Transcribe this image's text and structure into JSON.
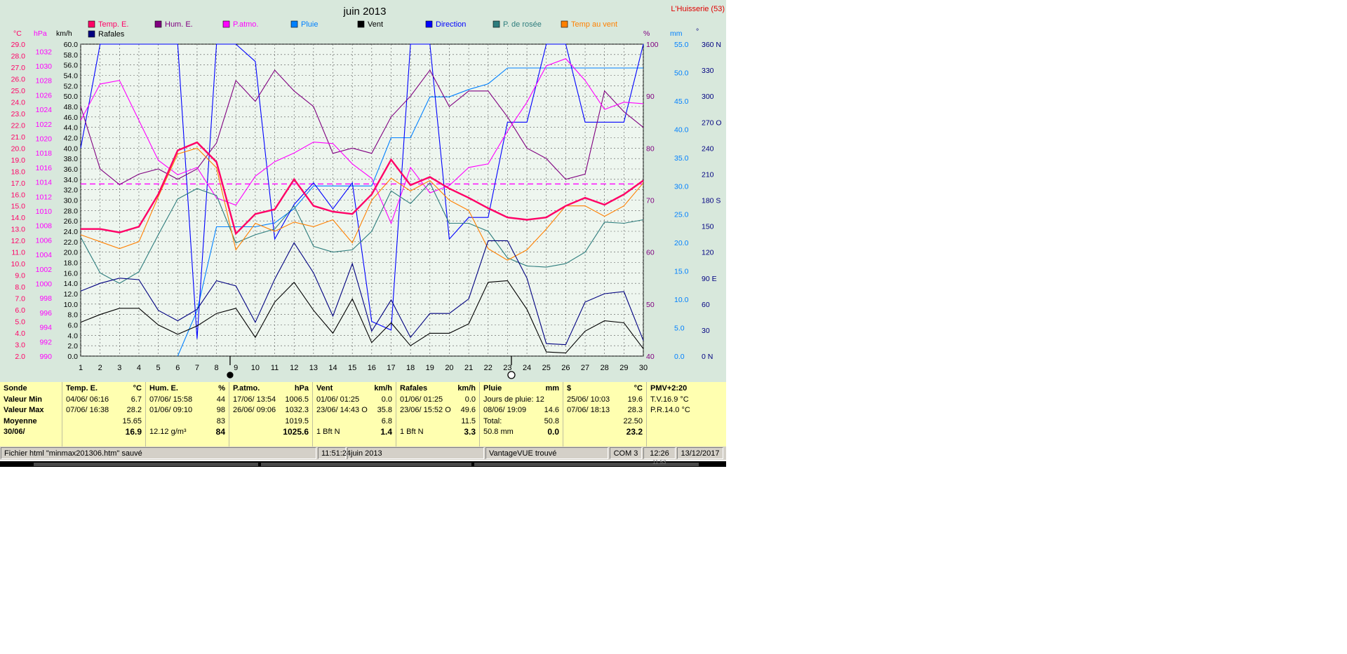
{
  "header": {
    "title": "juin 2013",
    "station": "L'Huisserie (53)"
  },
  "legend": [
    {
      "label": "Temp. E.",
      "color": "#ff0066"
    },
    {
      "label": "Hum. E.",
      "color": "#800080"
    },
    {
      "label": "P.atmo.",
      "color": "#ff00ff"
    },
    {
      "label": "Pluie",
      "color": "#0080ff"
    },
    {
      "label": "Vent",
      "color": "#000000"
    },
    {
      "label": "Direction",
      "color": "#0000ff"
    },
    {
      "label": "P. de rosée",
      "color": "#2e7d7d"
    },
    {
      "label": "Temp au vent",
      "color": "#ff8000"
    },
    {
      "label": "Rafales",
      "color": "#000080"
    }
  ],
  "axis_units": {
    "temp": "°C",
    "press": "hPa",
    "wind": "km/h",
    "hum": "%",
    "rain": "mm",
    "dir": "°"
  },
  "colors": {
    "temp": "#ff0066",
    "hum": "#800080",
    "press": "#ff00ff",
    "rain": "#0080ff",
    "wind": "#000000",
    "dir": "#0000ff",
    "dew": "#2e7d7d",
    "chill": "#ff8000",
    "gust": "#000080"
  },
  "chart_data": {
    "type": "line",
    "title": "juin 2013",
    "x": [
      1,
      2,
      3,
      4,
      5,
      6,
      7,
      8,
      9,
      10,
      11,
      12,
      13,
      14,
      15,
      16,
      17,
      18,
      19,
      20,
      21,
      22,
      23,
      24,
      25,
      26,
      27,
      28,
      29,
      30
    ],
    "axes": {
      "temp": {
        "range": [
          2,
          29
        ],
        "ticks": [
          "2.0",
          "3.0",
          "4.0",
          "5.0",
          "6.0",
          "7.0",
          "8.0",
          "9.0",
          "10.0",
          "11.0",
          "12.0",
          "13.0",
          "14.0",
          "15.0",
          "16.0",
          "17.0",
          "18.0",
          "19.0",
          "20.0",
          "21.0",
          "22.0",
          "23.0",
          "24.0",
          "25.0",
          "26.0",
          "27.0",
          "28.0",
          "29.0"
        ]
      },
      "press": {
        "range": [
          990,
          1033
        ],
        "ticks": [
          "990",
          "992",
          "994",
          "996",
          "998",
          "1000",
          "1002",
          "1004",
          "1006",
          "1008",
          "1010",
          "1012",
          "1014",
          "1016",
          "1018",
          "1020",
          "1022",
          "1024",
          "1026",
          "1028",
          "1030",
          "1032"
        ]
      },
      "wind": {
        "range": [
          0,
          60
        ],
        "ticks": [
          "0.0",
          "2.0",
          "4.0",
          "6.0",
          "8.0",
          "10.0",
          "12.0",
          "14.0",
          "16.0",
          "18.0",
          "20.0",
          "22.0",
          "24.0",
          "26.0",
          "28.0",
          "30.0",
          "32.0",
          "34.0",
          "36.0",
          "38.0",
          "40.0",
          "42.0",
          "44.0",
          "46.0",
          "48.0",
          "50.0",
          "52.0",
          "54.0",
          "56.0",
          "58.0",
          "60.0"
        ]
      },
      "hum": {
        "range": [
          40,
          100
        ],
        "ticks": [
          "40",
          "50",
          "60",
          "70",
          "80",
          "90",
          "100"
        ]
      },
      "rain": {
        "range": [
          0,
          55
        ],
        "ticks": [
          "0.0",
          "5.0",
          "10.0",
          "15.0",
          "20.0",
          "25.0",
          "30.0",
          "35.0",
          "40.0",
          "45.0",
          "50.0",
          "55.0"
        ]
      },
      "dir": {
        "range": [
          0,
          360
        ],
        "ticks": [
          "0   N",
          "30",
          "60",
          "90   E",
          "120",
          "150",
          "180 S",
          "210",
          "240",
          "270 O",
          "300",
          "330",
          "360 N"
        ]
      }
    },
    "series": [
      {
        "name": "Temp. E.",
        "axis": "temp",
        "values": [
          13.0,
          13.0,
          12.7,
          13.2,
          16.0,
          19.8,
          20.5,
          18.8,
          12.6,
          14.3,
          14.7,
          17.3,
          15.0,
          14.5,
          14.3,
          16.0,
          19.0,
          16.8,
          17.5,
          16.5,
          15.7,
          14.8,
          14.0,
          13.8,
          14.0,
          15.0,
          15.7,
          15.1,
          16.0,
          17.2
        ]
      },
      {
        "name": "Hum. E.",
        "axis": "hum",
        "values": [
          88,
          76,
          73,
          75,
          76,
          74,
          76,
          81,
          93,
          89,
          95,
          91,
          88,
          79,
          80,
          79,
          86,
          90,
          95,
          88,
          91,
          91,
          86,
          80,
          78,
          74,
          75,
          91,
          87,
          84
        ]
      },
      {
        "name": "P.atmo.",
        "axis": "press",
        "values": [
          1022.5,
          1027.5,
          1028.0,
          1022.5,
          1017.0,
          1015.0,
          1016.0,
          1011.8,
          1010.8,
          1014.8,
          1016.8,
          1018.0,
          1019.5,
          1019.3,
          1016.5,
          1014.5,
          1008.3,
          1016.0,
          1012.5,
          1013.5,
          1016.0,
          1016.5,
          1021.0,
          1025.0,
          1030.0,
          1031.0,
          1028.0,
          1024.0,
          1025.0,
          1024.8
        ]
      },
      {
        "name": "Pluie",
        "axis": "rain",
        "values": [
          null,
          null,
          null,
          null,
          null,
          0.0,
          8.0,
          22.8,
          22.8,
          22.8,
          23.5,
          26.0,
          30.0,
          30.0,
          30.0,
          30.0,
          38.5,
          38.5,
          45.7,
          45.7,
          47.0,
          48.0,
          50.8,
          50.8,
          50.8,
          50.8,
          50.8,
          50.8,
          50.8,
          50.8
        ]
      },
      {
        "name": "Vent",
        "axis": "wind",
        "values": [
          6.5,
          8.0,
          9.2,
          9.2,
          6.0,
          4.2,
          5.8,
          8.2,
          9.2,
          3.6,
          10.4,
          14.2,
          8.8,
          4.4,
          11.0,
          2.6,
          6.4,
          2.0,
          4.4,
          4.4,
          6.2,
          14.2,
          14.5,
          9.0,
          0.8,
          0.6,
          4.8,
          6.8,
          6.4,
          1.4
        ]
      },
      {
        "name": "Direction",
        "axis": "dir",
        "values": [
          240,
          360,
          360,
          360,
          360,
          360,
          20,
          360,
          360,
          340,
          135,
          175,
          200,
          170,
          200,
          40,
          30,
          360,
          360,
          135,
          160,
          160,
          270,
          270,
          360,
          360,
          270,
          270,
          270,
          360
        ]
      },
      {
        "name": "P. de rosée",
        "axis": "temp",
        "values": [
          12.3,
          9.2,
          8.3,
          9.3,
          12.5,
          15.6,
          16.5,
          15.9,
          11.8,
          12.5,
          13.0,
          15.0,
          11.5,
          11.0,
          11.2,
          12.8,
          16.3,
          15.2,
          17.0,
          13.5,
          13.5,
          12.8,
          10.5,
          9.8,
          9.7,
          10.0,
          11.0,
          13.6,
          13.5,
          13.8
        ]
      },
      {
        "name": "Temp au vent",
        "axis": "temp",
        "values": [
          12.5,
          11.9,
          11.3,
          11.9,
          15.8,
          19.5,
          20.0,
          18.3,
          11.2,
          13.5,
          12.8,
          13.6,
          13.2,
          13.8,
          11.8,
          15.5,
          17.4,
          16.3,
          17.2,
          15.5,
          14.6,
          11.3,
          10.3,
          11.2,
          13.0,
          15.0,
          15.0,
          14.1,
          15.0,
          17.0
        ]
      },
      {
        "name": "Rafales",
        "axis": "wind",
        "values": [
          12.5,
          14.0,
          15.0,
          14.7,
          8.8,
          6.8,
          9.0,
          14.5,
          13.5,
          6.5,
          14.8,
          21.8,
          16.0,
          7.7,
          17.8,
          4.8,
          10.8,
          3.6,
          8.2,
          8.2,
          11.0,
          22.2,
          22.2,
          15.0,
          2.4,
          2.2,
          10.4,
          12.0,
          12.4,
          3.0
        ]
      }
    ],
    "reference_line": {
      "axis": "temp",
      "value": 16.9,
      "color": "#ff00ff"
    },
    "moon_phases": [
      {
        "day": 8.7,
        "phase": "new"
      },
      {
        "day": 23.2,
        "phase": "full"
      }
    ],
    "grid": true,
    "legend_position": "top"
  },
  "stats": {
    "labels": [
      "Sonde",
      "Valeur Min",
      "Valeur Max",
      "Moyenne",
      "30/06/"
    ],
    "columns": [
      {
        "title": "Temp. E.",
        "unit": "°C",
        "min": {
          "date": "04/06/  06:16",
          "value": "6.7"
        },
        "max": {
          "date": "07/06/  16:38",
          "value": "28.2"
        },
        "mean": {
          "left": "",
          "value": "15.65"
        },
        "last": {
          "left": "",
          "value": "16.9"
        }
      },
      {
        "title": "Hum. E.",
        "unit": "%",
        "min": {
          "date": "07/06/  15:58",
          "value": "44"
        },
        "max": {
          "date": "01/06/  09:10",
          "value": "98"
        },
        "mean": {
          "left": "",
          "value": "83"
        },
        "last": {
          "left": "12.12 g/m³",
          "value": "84"
        }
      },
      {
        "title": "P.atmo.",
        "unit": "hPa",
        "min": {
          "date": "17/06/  13:54",
          "value": "1006.5"
        },
        "max": {
          "date": "26/06/  09:06",
          "value": "1032.3"
        },
        "mean": {
          "left": "",
          "value": "1019.5"
        },
        "last": {
          "left": "",
          "value": "1025.6"
        }
      },
      {
        "title": "Vent",
        "unit": "km/h",
        "min": {
          "date": "01/06/  01:25",
          "value": "0.0"
        },
        "max": {
          "date": "23/06/  14:43  O",
          "value": "35.8"
        },
        "mean": {
          "left": "",
          "value": "6.8"
        },
        "last": {
          "left": "1 Bft N",
          "value": "1.4"
        }
      },
      {
        "title": "Rafales",
        "unit": "km/h",
        "min": {
          "date": "01/06/  01:25",
          "value": "0.0"
        },
        "max": {
          "date": "23/06/  15:52  O",
          "value": "49.6"
        },
        "mean": {
          "left": "",
          "value": "11.5"
        },
        "last": {
          "left": "1 Bft N",
          "value": "3.3"
        }
      },
      {
        "title": "Pluie",
        "unit": "mm",
        "min": {
          "date": "Jours de pluie: 12",
          "value": ""
        },
        "max": {
          "date": "08/06/  19:09",
          "value": "14.6"
        },
        "mean": {
          "left": "Total:",
          "value": "50.8"
        },
        "last": {
          "left": "50.8 mm",
          "value": "0.0"
        }
      },
      {
        "title": "$",
        "unit": "°C",
        "min": {
          "date": "25/06/  10:03",
          "value": "19.6"
        },
        "max": {
          "date": "07/06/  18:13",
          "value": "28.3"
        },
        "mean": {
          "left": "",
          "value": "22.50"
        },
        "last": {
          "left": "",
          "value": "23.2"
        }
      }
    ],
    "pmv": {
      "title": "PMV+2:20",
      "line1": "T.V.16.9 °C",
      "line2": "P.R.14.0 °C"
    }
  },
  "status_bar": {
    "file": "Fichier html  \"minmax201306.htm\"  sauvé",
    "time": "11:51:24",
    "period": "juin 2013",
    "device": "VantageVUE trouvé",
    "port": "COM 3",
    "clock": "12:26",
    "date": "13/12/2017"
  },
  "taskbar": {
    "clock": "11:53"
  }
}
